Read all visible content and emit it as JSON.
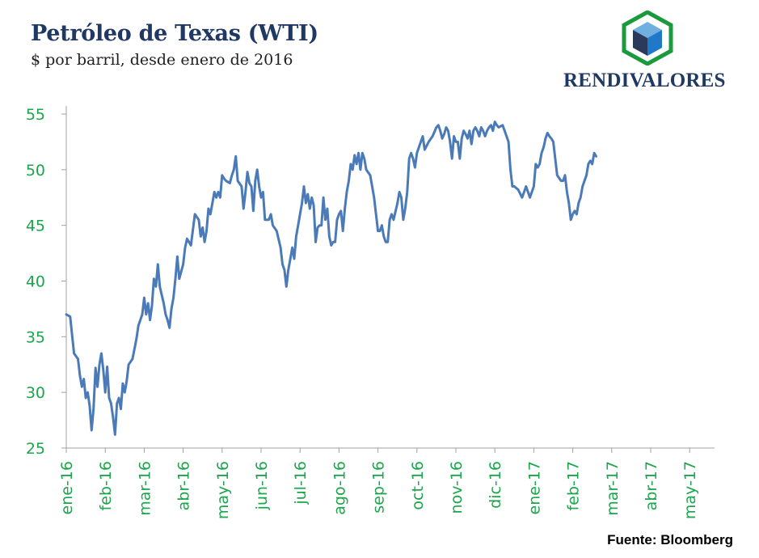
{
  "header": {
    "title": "Petróleo de Texas (WTI)",
    "subtitle": "$ por barril, desde enero de 2016"
  },
  "brand": {
    "name": "RENDIVALORES",
    "logo_icon": "cube-hexagon-logo-icon"
  },
  "footer": {
    "source": "Fuente: Bloomberg"
  },
  "colors": {
    "line": "#4a7ab8",
    "ticks": "#1aa64a",
    "title": "#1f3864",
    "axis": "#a0a0a0"
  },
  "chart_data": {
    "type": "line",
    "title": "Petróleo de Texas (WTI)",
    "subtitle": "$ por barril, desde enero de 2016",
    "xlabel": "",
    "ylabel": "",
    "ylim": [
      25,
      55
    ],
    "yticks": [
      25,
      30,
      35,
      40,
      45,
      50,
      55
    ],
    "xticks": [
      "ene-16",
      "feb-16",
      "mar-16",
      "abr-16",
      "may-16",
      "jun-16",
      "jul-16",
      "ago-16",
      "sep-16",
      "oct-16",
      "nov-16",
      "dic-16",
      "ene-17",
      "feb-17",
      "mar-17",
      "abr-17",
      "may-17"
    ],
    "grid": false,
    "legend": "none",
    "series": [
      {
        "values": [
          [
            0.0,
            37.0
          ],
          [
            0.1,
            36.8
          ],
          [
            0.2,
            33.5
          ],
          [
            0.3,
            33.0
          ],
          [
            0.35,
            31.5
          ],
          [
            0.4,
            30.5
          ],
          [
            0.45,
            31.2
          ],
          [
            0.5,
            29.5
          ],
          [
            0.55,
            30.0
          ],
          [
            0.6,
            28.8
          ],
          [
            0.65,
            26.6
          ],
          [
            0.7,
            28.5
          ],
          [
            0.75,
            32.2
          ],
          [
            0.8,
            30.5
          ],
          [
            0.85,
            32.5
          ],
          [
            0.9,
            33.5
          ],
          [
            0.95,
            32.0
          ],
          [
            1.0,
            30.0
          ],
          [
            1.05,
            32.3
          ],
          [
            1.1,
            29.5
          ],
          [
            1.15,
            29.0
          ],
          [
            1.2,
            27.8
          ],
          [
            1.25,
            26.2
          ],
          [
            1.3,
            29.0
          ],
          [
            1.35,
            29.5
          ],
          [
            1.4,
            28.5
          ],
          [
            1.45,
            30.8
          ],
          [
            1.5,
            30.0
          ],
          [
            1.55,
            31.0
          ],
          [
            1.6,
            32.5
          ],
          [
            1.7,
            33.0
          ],
          [
            1.8,
            34.8
          ],
          [
            1.85,
            36.0
          ],
          [
            1.9,
            36.5
          ],
          [
            1.95,
            37.0
          ],
          [
            2.0,
            38.5
          ],
          [
            2.05,
            37.0
          ],
          [
            2.1,
            38.0
          ],
          [
            2.15,
            36.5
          ],
          [
            2.2,
            37.8
          ],
          [
            2.25,
            40.2
          ],
          [
            2.3,
            39.5
          ],
          [
            2.35,
            41.5
          ],
          [
            2.4,
            39.5
          ],
          [
            2.5,
            38.0
          ],
          [
            2.55,
            37.0
          ],
          [
            2.6,
            36.5
          ],
          [
            2.65,
            35.8
          ],
          [
            2.7,
            37.5
          ],
          [
            2.75,
            38.5
          ],
          [
            2.8,
            40.2
          ],
          [
            2.85,
            42.2
          ],
          [
            2.9,
            40.2
          ],
          [
            3.0,
            41.5
          ],
          [
            3.05,
            43.0
          ],
          [
            3.1,
            43.8
          ],
          [
            3.2,
            43.2
          ],
          [
            3.3,
            46.0
          ],
          [
            3.4,
            45.5
          ],
          [
            3.45,
            44.0
          ],
          [
            3.5,
            44.8
          ],
          [
            3.55,
            43.5
          ],
          [
            3.6,
            44.5
          ],
          [
            3.65,
            46.5
          ],
          [
            3.7,
            46.0
          ],
          [
            3.75,
            47.0
          ],
          [
            3.8,
            48.0
          ],
          [
            3.85,
            47.5
          ],
          [
            3.9,
            48.0
          ],
          [
            3.95,
            47.5
          ],
          [
            4.0,
            49.5
          ],
          [
            4.05,
            49.2
          ],
          [
            4.1,
            49.0
          ],
          [
            4.2,
            48.8
          ],
          [
            4.25,
            49.5
          ],
          [
            4.3,
            50.0
          ],
          [
            4.35,
            51.2
          ],
          [
            4.4,
            49.0
          ],
          [
            4.5,
            48.5
          ],
          [
            4.55,
            46.5
          ],
          [
            4.6,
            48.0
          ],
          [
            4.65,
            49.8
          ],
          [
            4.7,
            48.8
          ],
          [
            4.75,
            48.5
          ],
          [
            4.8,
            46.3
          ],
          [
            4.85,
            49.0
          ],
          [
            4.9,
            50.0
          ],
          [
            4.95,
            48.5
          ],
          [
            5.0,
            47.5
          ],
          [
            5.05,
            48.0
          ],
          [
            5.1,
            45.5
          ],
          [
            5.2,
            45.5
          ],
          [
            5.25,
            46.0
          ],
          [
            5.3,
            45.0
          ],
          [
            5.4,
            44.5
          ],
          [
            5.5,
            43.0
          ],
          [
            5.55,
            41.5
          ],
          [
            5.6,
            41.0
          ],
          [
            5.65,
            39.5
          ],
          [
            5.7,
            41.0
          ],
          [
            5.75,
            42.0
          ],
          [
            5.8,
            43.0
          ],
          [
            5.85,
            42.0
          ],
          [
            5.9,
            44.0
          ],
          [
            5.95,
            45.0
          ],
          [
            6.0,
            46.0
          ],
          [
            6.05,
            47.0
          ],
          [
            6.1,
            48.5
          ],
          [
            6.15,
            47.0
          ],
          [
            6.2,
            47.8
          ],
          [
            6.25,
            46.5
          ],
          [
            6.3,
            47.5
          ],
          [
            6.35,
            46.8
          ],
          [
            6.4,
            43.5
          ],
          [
            6.45,
            44.8
          ],
          [
            6.5,
            45.0
          ],
          [
            6.55,
            45.0
          ],
          [
            6.6,
            47.5
          ],
          [
            6.65,
            45.5
          ],
          [
            6.7,
            46.5
          ],
          [
            6.75,
            44.0
          ],
          [
            6.8,
            43.2
          ],
          [
            6.85,
            43.5
          ],
          [
            6.9,
            43.5
          ],
          [
            6.95,
            45.5
          ],
          [
            7.0,
            46.0
          ],
          [
            7.05,
            46.3
          ],
          [
            7.1,
            44.5
          ],
          [
            7.15,
            46.5
          ],
          [
            7.2,
            48.0
          ],
          [
            7.25,
            49.0
          ],
          [
            7.3,
            50.5
          ],
          [
            7.35,
            50.0
          ],
          [
            7.4,
            51.3
          ],
          [
            7.45,
            50.5
          ],
          [
            7.5,
            51.5
          ],
          [
            7.55,
            50.0
          ],
          [
            7.6,
            51.5
          ],
          [
            7.65,
            51.0
          ],
          [
            7.7,
            50.0
          ],
          [
            7.8,
            49.5
          ],
          [
            7.9,
            47.5
          ],
          [
            7.95,
            46.0
          ],
          [
            8.0,
            44.5
          ],
          [
            8.05,
            44.5
          ],
          [
            8.1,
            45.0
          ],
          [
            8.15,
            44.0
          ],
          [
            8.2,
            43.5
          ],
          [
            8.25,
            43.5
          ],
          [
            8.3,
            45.5
          ],
          [
            8.35,
            46.0
          ],
          [
            8.4,
            45.5
          ],
          [
            8.5,
            47.0
          ],
          [
            8.55,
            48.0
          ],
          [
            8.6,
            47.5
          ],
          [
            8.65,
            45.5
          ],
          [
            8.7,
            46.5
          ],
          [
            8.75,
            48.0
          ],
          [
            8.8,
            51.0
          ],
          [
            8.85,
            51.5
          ],
          [
            8.9,
            51.0
          ],
          [
            8.95,
            50.2
          ],
          [
            9.0,
            51.5
          ],
          [
            9.05,
            52.0
          ],
          [
            9.1,
            52.5
          ],
          [
            9.15,
            53.0
          ],
          [
            9.2,
            51.8
          ],
          [
            9.3,
            52.5
          ],
          [
            9.4,
            53.0
          ],
          [
            9.5,
            53.8
          ],
          [
            9.55,
            54.0
          ],
          [
            9.6,
            53.5
          ],
          [
            9.65,
            52.8
          ],
          [
            9.7,
            53.2
          ],
          [
            9.75,
            53.8
          ],
          [
            9.8,
            53.5
          ],
          [
            9.85,
            52.5
          ],
          [
            9.9,
            51.0
          ],
          [
            9.95,
            53.0
          ],
          [
            10.0,
            52.5
          ],
          [
            10.05,
            52.5
          ],
          [
            10.1,
            51.0
          ],
          [
            10.15,
            52.8
          ],
          [
            10.2,
            53.5
          ],
          [
            10.25,
            53.2
          ],
          [
            10.3,
            52.8
          ],
          [
            10.35,
            53.5
          ],
          [
            10.4,
            52.3
          ],
          [
            10.45,
            53.5
          ],
          [
            10.5,
            53.8
          ],
          [
            10.55,
            53.5
          ],
          [
            10.6,
            53.0
          ],
          [
            10.65,
            53.8
          ],
          [
            10.7,
            53.5
          ],
          [
            10.75,
            53.0
          ],
          [
            10.8,
            53.5
          ],
          [
            10.85,
            53.8
          ],
          [
            10.9,
            54.0
          ],
          [
            10.95,
            53.5
          ],
          [
            11.0,
            54.3
          ],
          [
            11.05,
            54.0
          ],
          [
            11.1,
            53.8
          ],
          [
            11.2,
            54.0
          ],
          [
            11.3,
            53.0
          ],
          [
            11.35,
            52.5
          ],
          [
            11.4,
            50.0
          ],
          [
            11.45,
            48.5
          ],
          [
            11.5,
            48.5
          ],
          [
            11.6,
            48.2
          ],
          [
            11.7,
            47.5
          ],
          [
            11.75,
            48.0
          ],
          [
            11.8,
            48.5
          ],
          [
            11.85,
            48.0
          ],
          [
            11.9,
            47.5
          ],
          [
            11.95,
            48.0
          ],
          [
            12.0,
            48.5
          ],
          [
            12.05,
            50.5
          ],
          [
            12.1,
            50.2
          ],
          [
            12.15,
            50.5
          ],
          [
            12.2,
            51.5
          ],
          [
            12.25,
            52.0
          ],
          [
            12.3,
            52.8
          ],
          [
            12.35,
            53.3
          ],
          [
            12.4,
            53.0
          ],
          [
            12.45,
            52.8
          ],
          [
            12.5,
            52.5
          ],
          [
            12.55,
            51.0
          ],
          [
            12.6,
            49.5
          ],
          [
            12.7,
            49.0
          ],
          [
            12.75,
            49.0
          ],
          [
            12.8,
            49.5
          ],
          [
            12.85,
            48.0
          ],
          [
            12.9,
            47.0
          ],
          [
            12.95,
            45.5
          ],
          [
            13.0,
            46.0
          ],
          [
            13.05,
            46.3
          ],
          [
            13.1,
            46.0
          ],
          [
            13.15,
            47.0
          ],
          [
            13.2,
            47.5
          ],
          [
            13.25,
            48.5
          ],
          [
            13.3,
            49.0
          ],
          [
            13.35,
            49.5
          ],
          [
            13.4,
            50.5
          ],
          [
            13.45,
            50.8
          ],
          [
            13.5,
            50.5
          ],
          [
            13.55,
            51.5
          ],
          [
            13.6,
            51.2
          ]
        ]
      }
    ]
  }
}
